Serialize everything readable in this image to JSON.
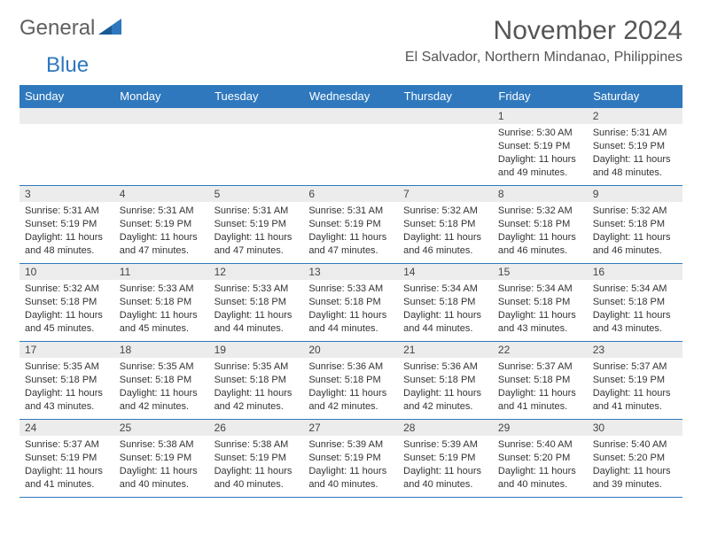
{
  "colors": {
    "accent": "#2f78bd",
    "header_bg": "#2f78bd",
    "header_text": "#ffffff",
    "daynum_bg": "#ececec",
    "text": "#333333",
    "title_text": "#555555",
    "background": "#ffffff",
    "border": "#2f78bd"
  },
  "typography": {
    "family": "Arial",
    "title_fontsize_pt": 22,
    "location_fontsize_pt": 12,
    "header_fontsize_pt": 10,
    "cell_fontsize_pt": 8
  },
  "logo": {
    "text1": "General",
    "text2": "Blue"
  },
  "title": "November 2024",
  "location": "El Salvador, Northern Mindanao, Philippines",
  "weekdays": [
    "Sunday",
    "Monday",
    "Tuesday",
    "Wednesday",
    "Thursday",
    "Friday",
    "Saturday"
  ],
  "layout": {
    "columns": 7,
    "rows": 5,
    "first_weekday_index": 5
  },
  "days": [
    {
      "n": 1,
      "sunrise": "5:30 AM",
      "sunset": "5:19 PM",
      "daylight": "11 hours and 49 minutes."
    },
    {
      "n": 2,
      "sunrise": "5:31 AM",
      "sunset": "5:19 PM",
      "daylight": "11 hours and 48 minutes."
    },
    {
      "n": 3,
      "sunrise": "5:31 AM",
      "sunset": "5:19 PM",
      "daylight": "11 hours and 48 minutes."
    },
    {
      "n": 4,
      "sunrise": "5:31 AM",
      "sunset": "5:19 PM",
      "daylight": "11 hours and 47 minutes."
    },
    {
      "n": 5,
      "sunrise": "5:31 AM",
      "sunset": "5:19 PM",
      "daylight": "11 hours and 47 minutes."
    },
    {
      "n": 6,
      "sunrise": "5:31 AM",
      "sunset": "5:19 PM",
      "daylight": "11 hours and 47 minutes."
    },
    {
      "n": 7,
      "sunrise": "5:32 AM",
      "sunset": "5:18 PM",
      "daylight": "11 hours and 46 minutes."
    },
    {
      "n": 8,
      "sunrise": "5:32 AM",
      "sunset": "5:18 PM",
      "daylight": "11 hours and 46 minutes."
    },
    {
      "n": 9,
      "sunrise": "5:32 AM",
      "sunset": "5:18 PM",
      "daylight": "11 hours and 46 minutes."
    },
    {
      "n": 10,
      "sunrise": "5:32 AM",
      "sunset": "5:18 PM",
      "daylight": "11 hours and 45 minutes."
    },
    {
      "n": 11,
      "sunrise": "5:33 AM",
      "sunset": "5:18 PM",
      "daylight": "11 hours and 45 minutes."
    },
    {
      "n": 12,
      "sunrise": "5:33 AM",
      "sunset": "5:18 PM",
      "daylight": "11 hours and 44 minutes."
    },
    {
      "n": 13,
      "sunrise": "5:33 AM",
      "sunset": "5:18 PM",
      "daylight": "11 hours and 44 minutes."
    },
    {
      "n": 14,
      "sunrise": "5:34 AM",
      "sunset": "5:18 PM",
      "daylight": "11 hours and 44 minutes."
    },
    {
      "n": 15,
      "sunrise": "5:34 AM",
      "sunset": "5:18 PM",
      "daylight": "11 hours and 43 minutes."
    },
    {
      "n": 16,
      "sunrise": "5:34 AM",
      "sunset": "5:18 PM",
      "daylight": "11 hours and 43 minutes."
    },
    {
      "n": 17,
      "sunrise": "5:35 AM",
      "sunset": "5:18 PM",
      "daylight": "11 hours and 43 minutes."
    },
    {
      "n": 18,
      "sunrise": "5:35 AM",
      "sunset": "5:18 PM",
      "daylight": "11 hours and 42 minutes."
    },
    {
      "n": 19,
      "sunrise": "5:35 AM",
      "sunset": "5:18 PM",
      "daylight": "11 hours and 42 minutes."
    },
    {
      "n": 20,
      "sunrise": "5:36 AM",
      "sunset": "5:18 PM",
      "daylight": "11 hours and 42 minutes."
    },
    {
      "n": 21,
      "sunrise": "5:36 AM",
      "sunset": "5:18 PM",
      "daylight": "11 hours and 42 minutes."
    },
    {
      "n": 22,
      "sunrise": "5:37 AM",
      "sunset": "5:18 PM",
      "daylight": "11 hours and 41 minutes."
    },
    {
      "n": 23,
      "sunrise": "5:37 AM",
      "sunset": "5:19 PM",
      "daylight": "11 hours and 41 minutes."
    },
    {
      "n": 24,
      "sunrise": "5:37 AM",
      "sunset": "5:19 PM",
      "daylight": "11 hours and 41 minutes."
    },
    {
      "n": 25,
      "sunrise": "5:38 AM",
      "sunset": "5:19 PM",
      "daylight": "11 hours and 40 minutes."
    },
    {
      "n": 26,
      "sunrise": "5:38 AM",
      "sunset": "5:19 PM",
      "daylight": "11 hours and 40 minutes."
    },
    {
      "n": 27,
      "sunrise": "5:39 AM",
      "sunset": "5:19 PM",
      "daylight": "11 hours and 40 minutes."
    },
    {
      "n": 28,
      "sunrise": "5:39 AM",
      "sunset": "5:19 PM",
      "daylight": "11 hours and 40 minutes."
    },
    {
      "n": 29,
      "sunrise": "5:40 AM",
      "sunset": "5:20 PM",
      "daylight": "11 hours and 40 minutes."
    },
    {
      "n": 30,
      "sunrise": "5:40 AM",
      "sunset": "5:20 PM",
      "daylight": "11 hours and 39 minutes."
    }
  ],
  "labels": {
    "sunrise": "Sunrise:",
    "sunset": "Sunset:",
    "daylight": "Daylight:"
  }
}
